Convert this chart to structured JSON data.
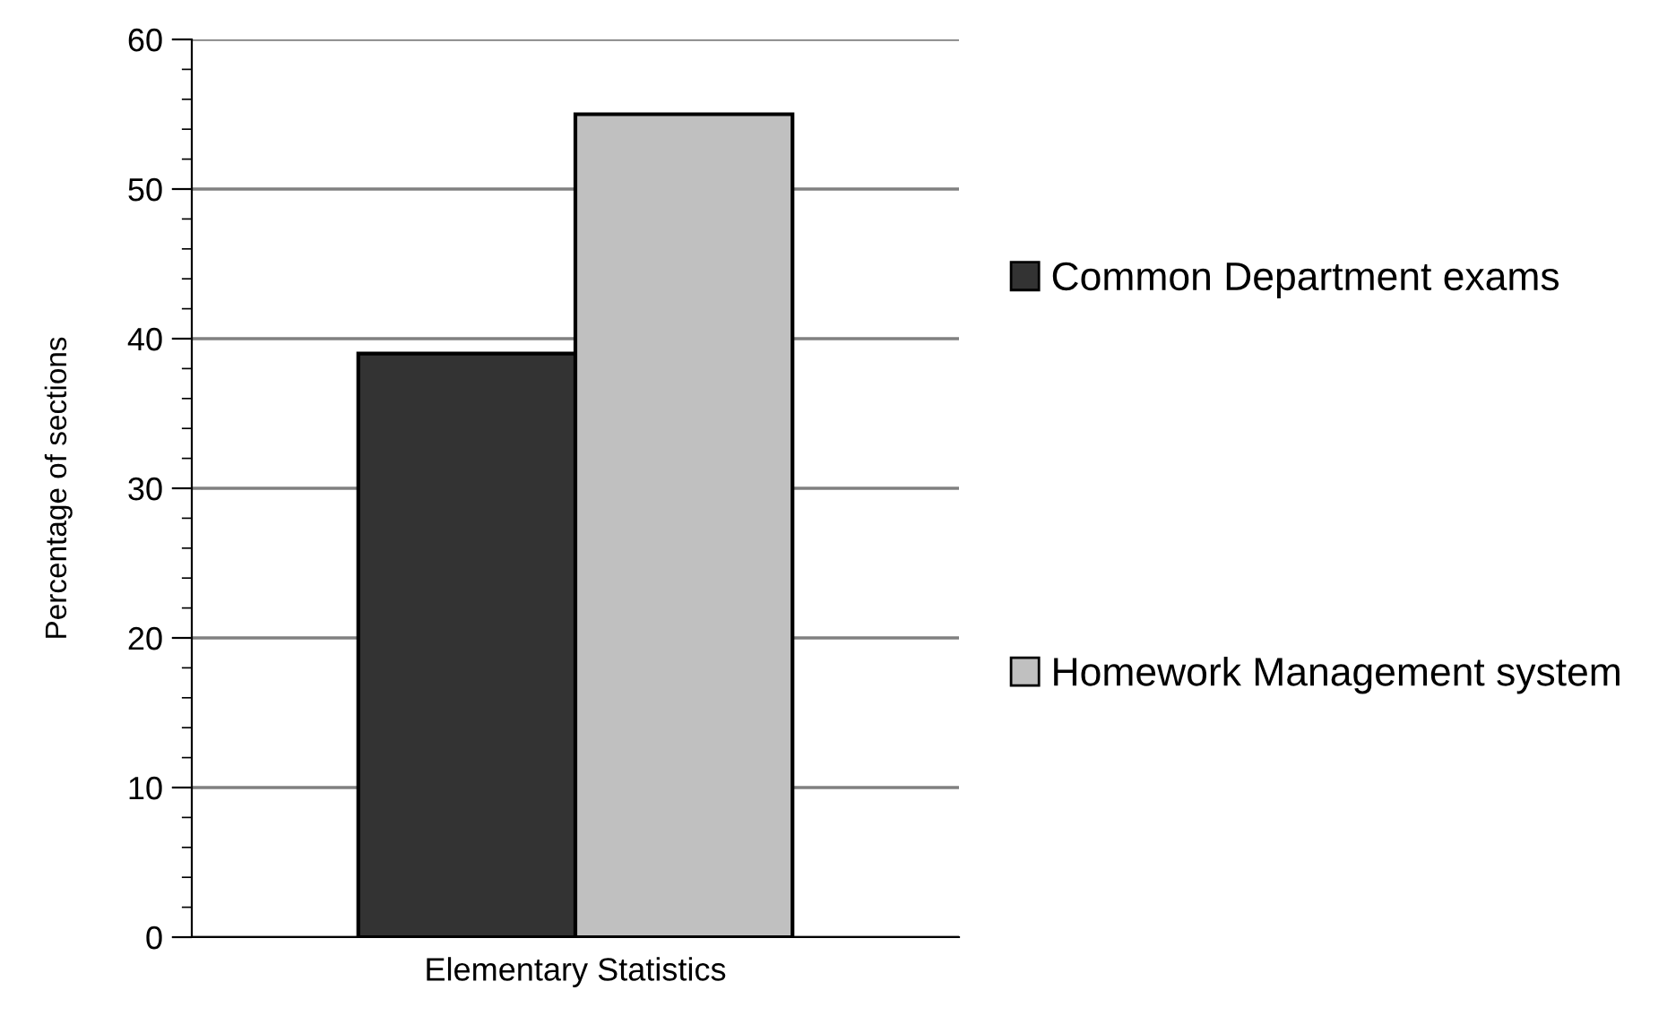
{
  "chart_data": {
    "type": "bar",
    "ylabel": "Percentage of sections",
    "categories": [
      "Elementary Statistics"
    ],
    "series": [
      {
        "name": "Common Department exams",
        "color": "#333333",
        "values": [
          39
        ]
      },
      {
        "name": "Homework Management system",
        "color": "#c0c0c0",
        "values": [
          55
        ]
      }
    ],
    "ylim": [
      0,
      60
    ],
    "yticks": [
      0,
      10,
      20,
      30,
      40,
      50,
      60
    ],
    "grid": "y",
    "legend": "right"
  }
}
